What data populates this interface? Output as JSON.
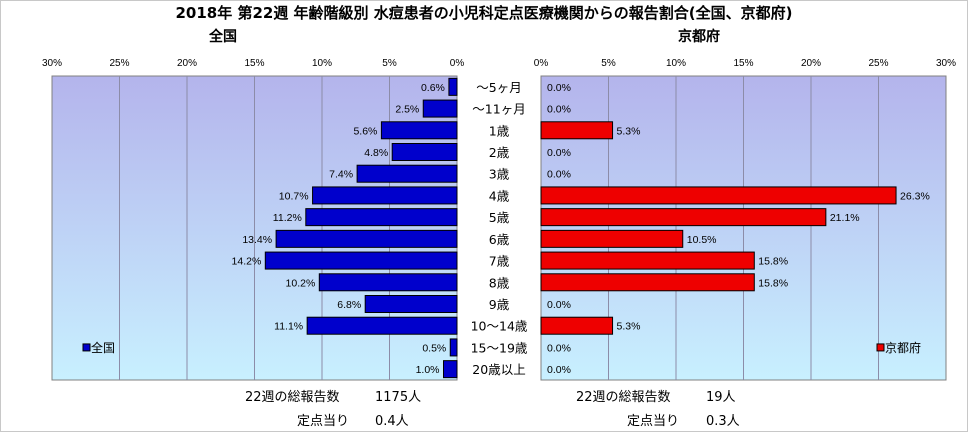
{
  "title": "2018年 第22週 年齢階級別 水痘患者の小児科定点医療機関からの報告割合(全国、京都府)",
  "left": {
    "title": "全国",
    "legend": "全国",
    "summary": {
      "total_label": "22週の総報告数",
      "total_value": "1175人",
      "per_label": "定点当り",
      "per_value": "0.4人"
    }
  },
  "right": {
    "title": "京都府",
    "legend": "京都府",
    "summary": {
      "total_label": "22週の総報告数",
      "total_value": "19人",
      "per_label": "定点当り",
      "per_value": "0.3人"
    }
  },
  "colors": {
    "national": "#0000cc",
    "kyoto": "#ee0000",
    "plot_top": "#b4b4ec",
    "plot_bottom": "#c8f0ff"
  },
  "chart_data": [
    {
      "type": "bar",
      "orientation": "horizontal",
      "title": "全国",
      "categories": [
        "～5ヶ月",
        "～11ヶ月",
        "1歳",
        "2歳",
        "3歳",
        "4歳",
        "5歳",
        "6歳",
        "7歳",
        "8歳",
        "9歳",
        "10～14歳",
        "15～19歳",
        "20歳以上"
      ],
      "series": [
        {
          "name": "全国",
          "values": [
            0.6,
            2.5,
            5.6,
            4.8,
            7.4,
            10.7,
            11.2,
            13.4,
            14.2,
            10.2,
            6.8,
            11.1,
            0.5,
            1.0
          ]
        }
      ],
      "data_labels": [
        "0.6%",
        "2.5%",
        "5.6%",
        "4.8%",
        "7.4%",
        "10.7%",
        "11.2%",
        "13.4%",
        "14.2%",
        "10.2%",
        "6.8%",
        "11.1%",
        "0.5%",
        "1.0%"
      ],
      "xlim": [
        0,
        30
      ],
      "ticks": [
        "30%",
        "25%",
        "20%",
        "15%",
        "10%",
        "5%",
        "0%"
      ],
      "reversed_x": true,
      "grid": true,
      "legend": "bottom-left"
    },
    {
      "type": "bar",
      "orientation": "horizontal",
      "title": "京都府",
      "categories": [
        "～5ヶ月",
        "～11ヶ月",
        "1歳",
        "2歳",
        "3歳",
        "4歳",
        "5歳",
        "6歳",
        "7歳",
        "8歳",
        "9歳",
        "10～14歳",
        "15～19歳",
        "20歳以上"
      ],
      "series": [
        {
          "name": "京都府",
          "values": [
            0.0,
            0.0,
            5.3,
            0.0,
            0.0,
            26.3,
            21.1,
            10.5,
            15.8,
            15.8,
            0.0,
            5.3,
            0.0,
            0.0
          ]
        }
      ],
      "data_labels": [
        "0.0%",
        "0.0%",
        "5.3%",
        "0.0%",
        "0.0%",
        "26.3%",
        "21.1%",
        "10.5%",
        "15.8%",
        "15.8%",
        "0.0%",
        "5.3%",
        "0.0%",
        "0.0%"
      ],
      "xlim": [
        0,
        30
      ],
      "ticks": [
        "0%",
        "5%",
        "10%",
        "15%",
        "20%",
        "25%",
        "30%"
      ],
      "grid": true,
      "legend": "bottom-right"
    }
  ]
}
